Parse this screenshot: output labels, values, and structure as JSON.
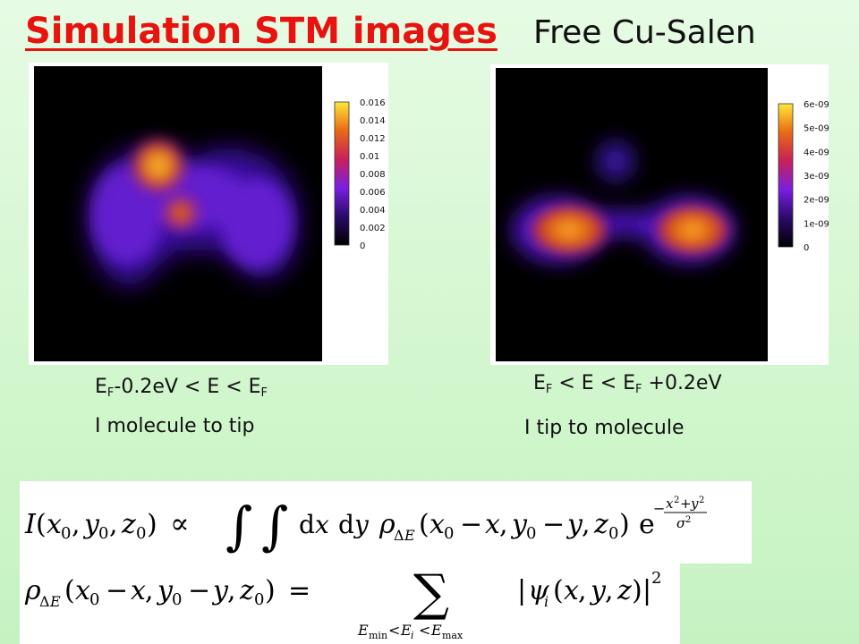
{
  "slide": {
    "title": "Simulation STM images",
    "subtitle": "Free Cu-Salen"
  },
  "left_panel": {
    "colorbar_ticks": [
      "0.016",
      "0.014",
      "0.012",
      "0.01",
      "0.008",
      "0.006",
      "0.004",
      "0.002",
      "0"
    ],
    "energy_caption": {
      "part1_main": "E",
      "part1_sub": "F",
      "part2": "-0.2eV < E < E",
      "part2_sub": "F"
    },
    "current_caption": "I molecule to tip"
  },
  "right_panel": {
    "colorbar_ticks": [
      "6e-09",
      "5e-09",
      "4e-09",
      "3e-09",
      "2e-09",
      "1e-09",
      "0"
    ],
    "energy_caption": {
      "part1_main": "E",
      "part1_sub": "F",
      "part2": " < E < E",
      "part2_sub": "F",
      "part3": " +0.2eV"
    },
    "current_caption": "I tip to molecule"
  },
  "colors": {
    "title": "#e8120f",
    "background": "#d4f7d0"
  }
}
